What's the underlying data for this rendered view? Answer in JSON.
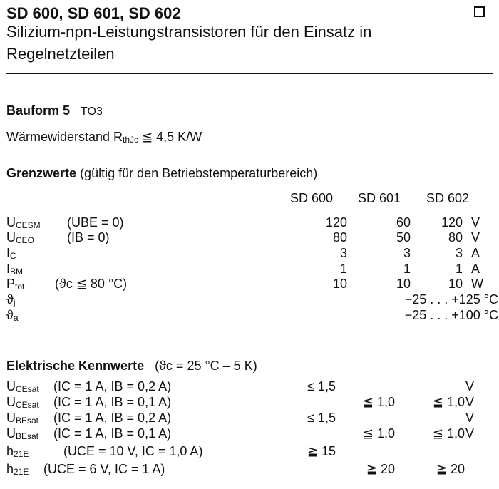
{
  "header": {
    "title": "SD 600, SD 601, SD 602",
    "subtitle_line1": "Silizium-npn-Leistungstransistoren für den Einsatz in",
    "subtitle_line2": "Regelnetzteilen"
  },
  "bauform": {
    "label": "Bauform 5",
    "value": "TO3"
  },
  "thermal": {
    "label": "Wärmewiderstand R",
    "sub": "thJc",
    "value": "≦ 4,5 K/W"
  },
  "grenzwerte": {
    "heading": "Grenzwerte",
    "note": "(gültig für den Betriebstemperaturbereich)",
    "columns": [
      "SD 600",
      "SD 601",
      "SD 602"
    ],
    "rows": [
      {
        "sym": "U",
        "sub": "CESM",
        "cond": "(UBE = 0)",
        "values": [
          "120",
          "60",
          "120"
        ],
        "unit": "V"
      },
      {
        "sym": "U",
        "sub": "CEO",
        "cond": "(IB = 0)",
        "values": [
          "80",
          "50",
          "80"
        ],
        "unit": "V"
      },
      {
        "sym": "I",
        "sub": "C",
        "cond": "",
        "values": [
          "3",
          "3",
          "3"
        ],
        "unit": "A"
      },
      {
        "sym": "I",
        "sub": "BM",
        "cond": "",
        "values": [
          "1",
          "1",
          "1"
        ],
        "unit": "A"
      },
      {
        "sym": "P",
        "sub": "tot",
        "cond": "(ϑc ≦ 80 °C)",
        "values": [
          "10",
          "10",
          "10"
        ],
        "unit": "W"
      },
      {
        "sym": "ϑ",
        "sub": "j",
        "cond": "",
        "range": "−25 . . . +125 °C"
      },
      {
        "sym": "ϑ",
        "sub": "a",
        "cond": "",
        "range": "−25 . . . +100 °C"
      }
    ]
  },
  "kennwerte": {
    "heading": "Elektrische Kennwerte",
    "note": "(ϑc = 25 °C – 5 K)",
    "rows": [
      {
        "sym": "U",
        "sub": "CEsat",
        "cond": "(IC = 1 A, IB = 0,2 A)",
        "values": [
          "≤ 1,5",
          "",
          ""
        ],
        "unit": "V"
      },
      {
        "sym": "U",
        "sub": "CEsat",
        "cond": "(IC = 1 A, IB = 0,1 A)",
        "values": [
          "",
          "≦ 1,0",
          "≦ 1,0"
        ],
        "unit": "V"
      },
      {
        "sym": "U",
        "sub": "BEsat",
        "cond": "(IC = 1 A, IB = 0,2 A)",
        "values": [
          "≤ 1,5",
          "",
          ""
        ],
        "unit": "V"
      },
      {
        "sym": "U",
        "sub": "BEsat",
        "cond": "(IC = 1 A, IB = 0,1 A)",
        "values": [
          "",
          "≦ 1,0",
          "≦ 1,0"
        ],
        "unit": "V"
      },
      {
        "sym": "h",
        "sub": "21E",
        "cond": "(UCE = 10 V, IC = 1,0 A)",
        "values": [
          "≧ 15",
          "",
          ""
        ],
        "unit": ""
      },
      {
        "sym": "h",
        "sub": "21E",
        "cond": "(UCE = 6 V, IC = 1 A)",
        "values": [
          "",
          "≧ 20",
          "≧ 20"
        ],
        "unit": ""
      }
    ]
  }
}
